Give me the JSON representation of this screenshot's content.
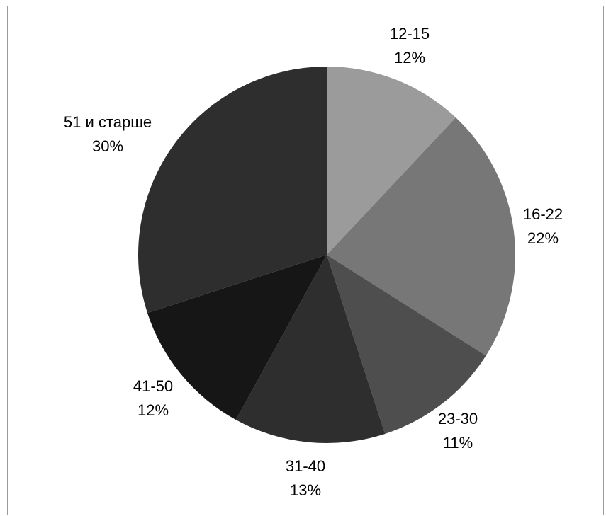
{
  "chart_data": {
    "type": "pie",
    "title": "",
    "slices": [
      {
        "label": "12-15",
        "value": 12,
        "value_label": "12%",
        "color": "#9b9b9b"
      },
      {
        "label": "16-22",
        "value": 22,
        "value_label": "22%",
        "color": "#777777"
      },
      {
        "label": "23-30",
        "value": 11,
        "value_label": "11%",
        "color": "#4e4e4e"
      },
      {
        "label": "31-40",
        "value": 13,
        "value_label": "13%",
        "color": "#2e2e2e"
      },
      {
        "label": "41-50",
        "value": 12,
        "value_label": "12%",
        "color": "#161616"
      },
      {
        "label": "51 и старше",
        "value": 30,
        "value_label": "30%",
        "color": "#2e2e2e"
      }
    ],
    "start_angle": "12 o'clock",
    "direction": "clockwise",
    "legend": "none",
    "grid": false
  }
}
